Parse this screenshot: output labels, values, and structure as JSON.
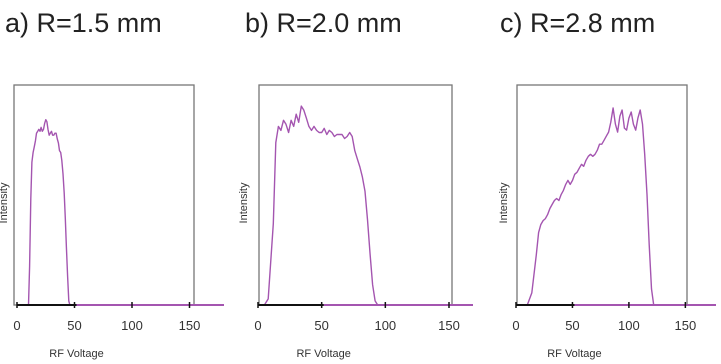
{
  "colors": {
    "curve": "#a455b0",
    "frame": "#777777",
    "baseline": "#111111",
    "axis_tail": "#a455b0"
  },
  "chart_data": [
    {
      "type": "line",
      "title": "a) R=1.5 mm",
      "xlabel": "RF Voltage",
      "ylabel": "Intensity",
      "xlim": [
        0,
        160
      ],
      "ylim": [
        0,
        1
      ],
      "xticks": [
        0,
        50,
        100,
        150
      ],
      "grid": false,
      "series": [
        {
          "x": [
            10,
            11,
            12,
            13,
            14,
            15,
            16,
            17,
            18,
            19,
            20,
            21,
            22,
            23,
            24,
            25,
            26,
            27,
            28,
            29,
            30,
            31,
            32,
            33,
            34,
            35,
            36,
            37,
            38,
            39,
            40,
            41,
            42,
            43,
            44,
            45,
            46,
            47,
            48,
            49,
            50
          ],
          "y": [
            0.0,
            0.2,
            0.55,
            0.74,
            0.79,
            0.82,
            0.85,
            0.89,
            0.9,
            0.91,
            0.9,
            0.92,
            0.9,
            0.91,
            0.94,
            0.96,
            0.95,
            0.91,
            0.88,
            0.89,
            0.9,
            0.88,
            0.88,
            0.89,
            0.89,
            0.86,
            0.84,
            0.8,
            0.79,
            0.75,
            0.68,
            0.58,
            0.45,
            0.3,
            0.15,
            0.02,
            0.0,
            0.0,
            0.0,
            0.0,
            0.0
          ]
        }
      ]
    },
    {
      "type": "line",
      "title": "b) R=2.0 mm",
      "xlabel": "RF Voltage",
      "ylabel": "Intensity",
      "xlim": [
        0,
        170
      ],
      "ylim": [
        0,
        1
      ],
      "xticks": [
        0,
        50,
        100,
        150
      ],
      "grid": false,
      "series": [
        {
          "x": [
            0,
            5,
            8,
            12,
            14,
            16,
            18,
            20,
            22,
            24,
            26,
            28,
            30,
            32,
            34,
            36,
            38,
            40,
            42,
            44,
            46,
            48,
            50,
            52,
            54,
            56,
            58,
            60,
            62,
            64,
            66,
            68,
            70,
            72,
            74,
            76,
            78,
            80,
            82,
            84,
            86,
            88,
            90,
            92,
            94,
            96,
            100
          ],
          "y": [
            0.0,
            0.0,
            0.03,
            0.4,
            0.8,
            0.88,
            0.86,
            0.91,
            0.89,
            0.85,
            0.91,
            0.88,
            0.94,
            0.9,
            0.98,
            0.96,
            0.92,
            0.88,
            0.86,
            0.88,
            0.86,
            0.85,
            0.85,
            0.87,
            0.84,
            0.86,
            0.85,
            0.83,
            0.84,
            0.84,
            0.84,
            0.82,
            0.83,
            0.85,
            0.83,
            0.76,
            0.72,
            0.68,
            0.63,
            0.56,
            0.42,
            0.25,
            0.1,
            0.02,
            0.0,
            0.0,
            0.0
          ]
        }
      ]
    },
    {
      "type": "line",
      "title": "c) R=2.8 mm",
      "xlabel": "RF Voltage",
      "ylabel": "Intensity",
      "xlim": [
        0,
        170
      ],
      "ylim": [
        0,
        1
      ],
      "xticks": [
        0,
        50,
        100,
        150
      ],
      "grid": false,
      "series": [
        {
          "x": [
            0,
            5,
            10,
            14,
            18,
            20,
            22,
            24,
            26,
            28,
            30,
            32,
            34,
            36,
            38,
            40,
            42,
            44,
            46,
            48,
            50,
            52,
            54,
            56,
            58,
            60,
            62,
            64,
            66,
            68,
            70,
            72,
            74,
            76,
            78,
            80,
            82,
            84,
            86,
            88,
            90,
            92,
            94,
            96,
            98,
            100,
            102,
            104,
            106,
            108,
            110,
            112,
            114,
            116,
            118,
            120,
            122,
            124,
            126,
            128,
            130,
            132,
            135
          ],
          "y": [
            0.0,
            0.0,
            0.0,
            0.06,
            0.25,
            0.36,
            0.4,
            0.42,
            0.43,
            0.45,
            0.48,
            0.5,
            0.52,
            0.53,
            0.52,
            0.55,
            0.57,
            0.6,
            0.62,
            0.6,
            0.62,
            0.65,
            0.66,
            0.68,
            0.7,
            0.69,
            0.72,
            0.74,
            0.75,
            0.74,
            0.75,
            0.77,
            0.8,
            0.8,
            0.82,
            0.84,
            0.86,
            0.91,
            0.98,
            0.9,
            0.86,
            0.94,
            0.97,
            0.88,
            0.87,
            0.93,
            0.96,
            0.9,
            0.87,
            0.93,
            0.97,
            0.9,
            0.75,
            0.55,
            0.3,
            0.08,
            0.0,
            0.0,
            0.0,
            0.0,
            0.0,
            0.0,
            0.0
          ]
        }
      ]
    }
  ]
}
